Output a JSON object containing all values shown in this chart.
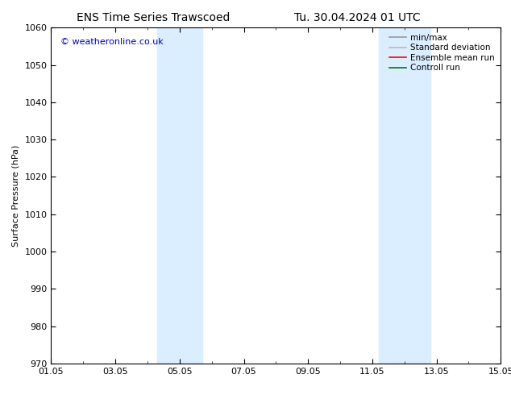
{
  "title": "ENS Time Series Trawscoed",
  "title_right": "Tu. 30.04.2024 01 UTC",
  "ylabel": "Surface Pressure (hPa)",
  "ylim": [
    970,
    1060
  ],
  "yticks": [
    970,
    980,
    990,
    1000,
    1010,
    1020,
    1030,
    1040,
    1050,
    1060
  ],
  "xlim": [
    0,
    14
  ],
  "xtick_positions": [
    0,
    2,
    4,
    6,
    8,
    10,
    12,
    14
  ],
  "xtick_labels": [
    "01.05",
    "03.05",
    "05.05",
    "07.05",
    "09.05",
    "11.05",
    "13.05",
    "15.05"
  ],
  "shaded_regions": [
    {
      "x_start": 3.3,
      "x_end": 4.7,
      "color": "#daeeff"
    },
    {
      "x_start": 10.2,
      "x_end": 11.8,
      "color": "#daeeff"
    }
  ],
  "watermark": "© weatheronline.co.uk",
  "watermark_color": "#0000bb",
  "legend_entries": [
    {
      "label": "min/max",
      "color": "#999999",
      "linestyle": "-"
    },
    {
      "label": "Standard deviation",
      "color": "#bbbbbb",
      "linestyle": "-"
    },
    {
      "label": "Ensemble mean run",
      "color": "#ff0000",
      "linestyle": "-"
    },
    {
      "label": "Controll run",
      "color": "#007700",
      "linestyle": "-"
    }
  ],
  "background_color": "#ffffff",
  "font_size": 8,
  "title_font_size": 10,
  "watermark_font_size": 8
}
